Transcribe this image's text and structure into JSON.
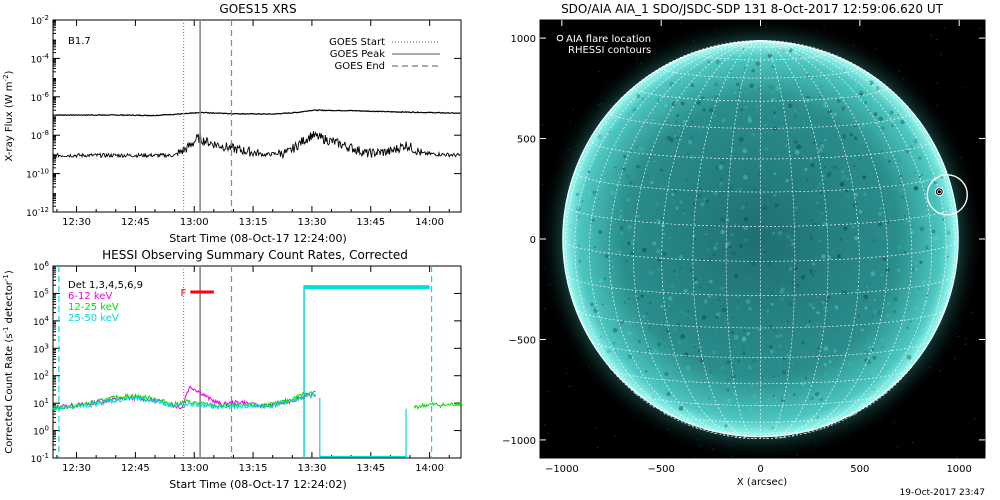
{
  "chart_data": [
    {
      "type": "line",
      "title": "GOES15 XRS",
      "xlabel": "Start Time (08-Oct-17 12:24:00)",
      "ylabel": "X-ray Flux (W m",
      "ylabel_sup": "-2",
      "ylabel_end": ")",
      "x_ticks": [
        "12:30",
        "12:45",
        "13:00",
        "13:15",
        "13:30",
        "13:45",
        "14:00"
      ],
      "x_tick_minutes": [
        30,
        45,
        60,
        75,
        90,
        105,
        120
      ],
      "xlim_minutes": [
        24,
        128
      ],
      "y_scale": "log",
      "ylim_exp": [
        -12,
        -2
      ],
      "y_tick_exp": [
        -12,
        -10,
        -8,
        -6,
        -4,
        -2
      ],
      "y_tick_base": "10",
      "y_tick_sups": [
        "-12",
        "-10",
        "-8",
        "-6",
        "-4",
        "-2"
      ],
      "annotation": "B1.7",
      "legend": {
        "placement": "top-right",
        "entries": [
          {
            "label": "GOES Start",
            "style": "dotted",
            "minute": 57.3
          },
          {
            "label": "GOES Peak",
            "style": "solid",
            "minute": 61.5
          },
          {
            "label": "GOES End",
            "style": "dashed",
            "minute": 69.5
          }
        ]
      },
      "series": [
        {
          "label": "upper channel",
          "points": [
            [
              24,
              -6.95
            ],
            [
              40,
              -6.95
            ],
            [
              50,
              -6.97
            ],
            [
              56,
              -6.9
            ],
            [
              62,
              -6.82
            ],
            [
              70,
              -6.88
            ],
            [
              80,
              -6.9
            ],
            [
              86,
              -6.82
            ],
            [
              90,
              -6.7
            ],
            [
              100,
              -6.72
            ],
            [
              110,
              -6.78
            ],
            [
              120,
              -6.82
            ],
            [
              128,
              -6.86
            ]
          ]
        },
        {
          "label": "lower channel",
          "points": [
            [
              24,
              -9.05
            ],
            [
              45,
              -9.05
            ],
            [
              55,
              -9.05
            ],
            [
              58,
              -8.7
            ],
            [
              61,
              -8.15
            ],
            [
              64,
              -8.4
            ],
            [
              70,
              -8.7
            ],
            [
              78,
              -9.02
            ],
            [
              84,
              -8.9
            ],
            [
              87,
              -8.4
            ],
            [
              90,
              -8.0
            ],
            [
              94,
              -8.25
            ],
            [
              100,
              -8.65
            ],
            [
              104,
              -8.95
            ],
            [
              110,
              -8.85
            ],
            [
              114,
              -8.5
            ],
            [
              118,
              -8.95
            ],
            [
              128,
              -9.05
            ]
          ]
        }
      ],
      "colors": {
        "data": "#000000"
      }
    },
    {
      "type": "line",
      "title": "HESSI Observing Summary Count Rates, Corrected",
      "xlabel": "Start Time (08-Oct-17 12:24:02)",
      "ylabel": "Corrected Count Rate (s",
      "ylabel_sup": "-1",
      "ylabel_mid": " detector",
      "ylabel_sup2": "-1",
      "ylabel_end": ")",
      "x_ticks": [
        "12:30",
        "12:45",
        "13:00",
        "13:15",
        "13:30",
        "13:45",
        "14:00"
      ],
      "x_tick_minutes": [
        30,
        45,
        60,
        75,
        90,
        105,
        120
      ],
      "xlim_minutes": [
        24,
        128
      ],
      "y_scale": "log",
      "ylim_exp": [
        -1,
        6
      ],
      "y_tick_exp": [
        -1,
        0,
        1,
        2,
        3,
        4,
        5,
        6
      ],
      "y_tick_base": "10",
      "y_tick_sups": [
        "-1",
        "0",
        "1",
        "2",
        "3",
        "4",
        "5",
        "6"
      ],
      "flare_marker": {
        "label": "F",
        "start_minute": 59,
        "end_minute": 65,
        "y_exp": 5.05,
        "color": "#ff0000"
      },
      "legend": {
        "placement": "top-left",
        "entries": [
          {
            "label": "Det 1,3,4,5,6,9",
            "color": "#000000"
          },
          {
            "label": "6-12 keV",
            "color": "#ee00ee"
          },
          {
            "label": "12-25 keV",
            "color": "#00dd00"
          },
          {
            "label": "25-50 keV",
            "color": "#00dddd"
          }
        ]
      },
      "series": [
        {
          "label": "6-12 keV",
          "color": "#ee00ee",
          "points": [
            [
              24,
              0.85
            ],
            [
              32,
              0.95
            ],
            [
              38,
              1.1
            ],
            [
              44,
              1.2
            ],
            [
              50,
              1.1
            ],
            [
              55,
              0.9
            ],
            [
              57,
              0.85
            ],
            [
              58,
              1.35
            ],
            [
              59,
              1.6
            ],
            [
              61,
              1.45
            ],
            [
              64,
              1.15
            ],
            [
              67,
              0.95
            ],
            [
              72,
              1.05
            ],
            [
              76,
              0.9
            ],
            [
              80,
              0.92
            ],
            [
              84,
              1.05
            ],
            [
              88,
              1.25
            ],
            [
              91,
              1.3
            ]
          ]
        },
        {
          "label": "12-25 keV",
          "color": "#00dd00",
          "points": [
            [
              24,
              0.8
            ],
            [
              32,
              0.95
            ],
            [
              38,
              1.15
            ],
            [
              44,
              1.28
            ],
            [
              50,
              1.15
            ],
            [
              55,
              0.95
            ],
            [
              58,
              1.05
            ],
            [
              61,
              1.0
            ],
            [
              66,
              0.9
            ],
            [
              72,
              0.92
            ],
            [
              80,
              0.95
            ],
            [
              85,
              1.15
            ],
            [
              88,
              1.35
            ],
            [
              91,
              1.45
            ]
          ]
        },
        {
          "label": "25-50 keV",
          "color": "#00dddd",
          "points": [
            [
              24,
              0.78
            ],
            [
              32,
              0.9
            ],
            [
              38,
              1.05
            ],
            [
              44,
              1.18
            ],
            [
              50,
              1.08
            ],
            [
              55,
              0.9
            ],
            [
              60,
              0.95
            ],
            [
              66,
              0.85
            ],
            [
              72,
              0.88
            ],
            [
              80,
              0.9
            ],
            [
              88,
              1.2
            ],
            [
              91,
              1.3
            ]
          ]
        },
        {
          "label": "late segment",
          "color": "#00dd00",
          "points": [
            [
              116,
              0.85
            ],
            [
              120,
              0.95
            ],
            [
              124,
              0.92
            ],
            [
              128,
              1.0
            ]
          ]
        }
      ],
      "attenuator_block": {
        "start_minute": 88,
        "end_minute": 120,
        "top_exp": 5.3,
        "bottom_exp": -1,
        "gap_start": 92,
        "gap_end": 114,
        "color": "#00dddd"
      },
      "vertical_lines": [
        {
          "minute": 57.3,
          "style": "dotted",
          "color": "#888888"
        },
        {
          "minute": 61.5,
          "style": "solid",
          "color": "#888888"
        },
        {
          "minute": 69.5,
          "style": "dashed",
          "color": "#888888"
        },
        {
          "minute": 25.5,
          "style": "dashed",
          "color": "#00dddd"
        },
        {
          "minute": 120.5,
          "style": "dashed",
          "color": "#00dddd"
        }
      ]
    },
    {
      "type": "image",
      "title": "SDO/AIA AIA_1 SDO/JSDC-SDP 131  8-Oct-2017 12:59:06.620 UT",
      "xlabel": "X (arcsec)",
      "ylabel": "",
      "x_ticks": [
        -1000,
        -500,
        0,
        500,
        1000
      ],
      "y_ticks": [
        -1000,
        -500,
        0,
        500,
        1000
      ],
      "xlim": [
        -1110,
        1130
      ],
      "ylim": [
        -1090,
        1090
      ],
      "solar_radius_arcsec": 995,
      "legend": [
        {
          "label": "AIA flare location",
          "symbol": "circle"
        },
        {
          "label": "RHESSI contours",
          "symbol": "none"
        }
      ],
      "flare_location": [
        940,
        220
      ],
      "colors": {
        "disk": "#2a9e9a",
        "limb": "#7ef6ee",
        "background": "#000000",
        "grid": "#ffffff"
      }
    }
  ],
  "footer": {
    "timestamp": "19-Oct-2017 23:47"
  }
}
